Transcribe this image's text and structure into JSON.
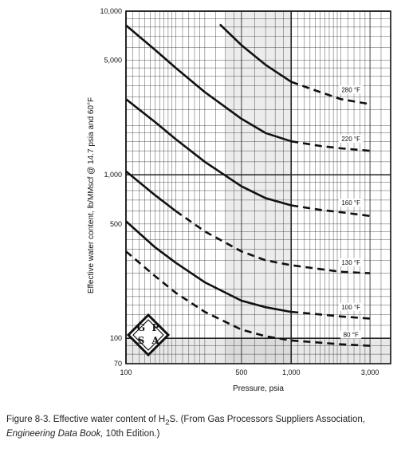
{
  "chart_data": {
    "type": "line",
    "title": "",
    "xlabel": "Pressure, psia",
    "ylabel": "Effective water content, lb/MMscf @ 14.7 psia and 60°F",
    "x_scale": "log",
    "y_scale": "log",
    "xlim": [
      100,
      4000
    ],
    "ylim": [
      70,
      10000
    ],
    "x_ticks": [
      {
        "value": 100,
        "label": "100"
      },
      {
        "value": 500,
        "label": "500"
      },
      {
        "value": 1000,
        "label": "1,000"
      },
      {
        "value": 3000,
        "label": "3,000"
      }
    ],
    "y_ticks": [
      {
        "value": 70,
        "label": "70"
      },
      {
        "value": 100,
        "label": "100"
      },
      {
        "value": 500,
        "label": "500"
      },
      {
        "value": 1000,
        "label": "1,000"
      },
      {
        "value": 5000,
        "label": "5,000"
      },
      {
        "value": 10000,
        "label": "10,000"
      }
    ],
    "grid": true,
    "series": [
      {
        "name": "280 °F",
        "x": [
          370,
          500,
          700,
          1000,
          1500,
          2000,
          3000
        ],
        "y": [
          8300,
          6200,
          4700,
          3700,
          3200,
          2900,
          2700
        ],
        "solid_until": 1000
      },
      {
        "name": "220 °F",
        "x": [
          100,
          150,
          200,
          300,
          500,
          700,
          1000,
          1500,
          2000,
          3000
        ],
        "y": [
          8200,
          5800,
          4500,
          3200,
          2200,
          1800,
          1600,
          1500,
          1450,
          1400
        ],
        "solid_until": 1000
      },
      {
        "name": "160 °F",
        "x": [
          100,
          150,
          200,
          300,
          500,
          700,
          1000,
          1500,
          2000,
          3000
        ],
        "y": [
          2900,
          2100,
          1650,
          1200,
          850,
          720,
          650,
          610,
          590,
          560
        ],
        "solid_until": 1000
      },
      {
        "name": "130 °F",
        "x": [
          100,
          150,
          200,
          300,
          500,
          700,
          1000,
          1500,
          2000,
          3000
        ],
        "y": [
          1050,
          750,
          600,
          450,
          340,
          300,
          280,
          265,
          255,
          250
        ],
        "solid_until": 200
      },
      {
        "name": "100 °F",
        "x": [
          100,
          150,
          200,
          300,
          500,
          700,
          1000,
          1500,
          2000,
          3000
        ],
        "y": [
          520,
          360,
          290,
          220,
          170,
          155,
          145,
          140,
          136,
          132
        ],
        "solid_until": 1000
      },
      {
        "name": "80 °F",
        "x": [
          100,
          150,
          200,
          300,
          500,
          700,
          1000,
          1500,
          2000,
          3000
        ],
        "y": [
          340,
          240,
          190,
          145,
          113,
          103,
          97,
          94,
          92,
          90
        ],
        "solid_until": 100
      }
    ]
  },
  "logo": {
    "letters": "GPSA"
  },
  "caption": {
    "prefix": "Figure 8-3. Effective water content of H",
    "subscript": "2",
    "middle": "S. (From Gas Processors Suppliers Association, ",
    "book_title": "Engineering Data Book,",
    "suffix": " 10th Edition.)"
  }
}
